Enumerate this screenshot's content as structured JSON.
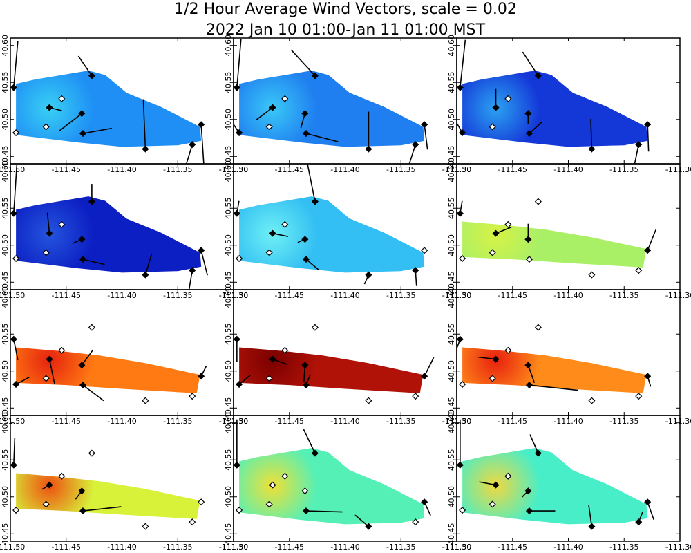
{
  "title": {
    "line1": "1/2 Hour Average Wind Vectors, scale =  0.02",
    "line2": "2022 Jan 10 01:00-Jan 11 01:00 MST"
  },
  "chart_data": {
    "type": "heatmap",
    "title": "1/2 Hour Average Wind Vectors, scale =  0.02",
    "subtitle": "2022 Jan 10 01:00-Jan 11 01:00 MST",
    "xlabel": "",
    "ylabel": "",
    "xlim": [
      -111.5,
      -111.3
    ],
    "ylim": [
      40.44,
      40.61
    ],
    "grid": false,
    "x_ticks": [
      -111.5,
      -111.45,
      -111.4,
      -111.35,
      -111.3
    ],
    "x_tick_labels": [
      "-111.50",
      "-111.45",
      "-111.40",
      "-111.35",
      "-111.30"
    ],
    "y_ticks": [
      40.45,
      40.5,
      40.55,
      40.6
    ],
    "y_tick_labels": [
      "40.45",
      "40.50",
      "40.55",
      "40.60"
    ],
    "stations": [
      {
        "id": "A",
        "lon": -111.497,
        "lat": 40.543
      },
      {
        "id": "B",
        "lon": -111.495,
        "lat": 40.482
      },
      {
        "id": "C",
        "lon": -111.465,
        "lat": 40.516
      },
      {
        "id": "D",
        "lon": -111.468,
        "lat": 40.49
      },
      {
        "id": "E",
        "lon": -111.454,
        "lat": 40.528
      },
      {
        "id": "F",
        "lon": -111.436,
        "lat": 40.508
      },
      {
        "id": "G",
        "lon": -111.435,
        "lat": 40.481
      },
      {
        "id": "H",
        "lon": -111.427,
        "lat": 40.559
      },
      {
        "id": "I",
        "lon": -111.379,
        "lat": 40.46
      },
      {
        "id": "J",
        "lon": -111.337,
        "lat": 40.466
      },
      {
        "id": "K",
        "lon": -111.329,
        "lat": 40.493
      }
    ],
    "panels": [
      {
        "index": 1,
        "field_color": "#1f8ff5",
        "core_color": "#38d0f4",
        "vectors": [
          [
            0.4,
            4.5
          ],
          [
            0,
            0
          ],
          [
            1.2,
            -0.3
          ],
          [
            0,
            0
          ],
          [
            0,
            0
          ],
          [
            -2.2,
            -1.7
          ],
          [
            2.8,
            0.5
          ],
          [
            -1.3,
            1.9
          ],
          [
            -0.2,
            4.8
          ],
          [
            -0.7,
            -2.3
          ],
          [
            0.3,
            -4.6
          ]
        ]
      },
      {
        "index": 2,
        "field_color": "#1f7ef0",
        "core_color": "#3ac8f7",
        "vectors": [
          [
            0.4,
            4.7
          ],
          [
            -1.4,
            2.1
          ],
          [
            -1.6,
            -1.2
          ],
          [
            0,
            0
          ],
          [
            0,
            0
          ],
          [
            -0.4,
            -1.4
          ],
          [
            3.1,
            -0.8
          ],
          [
            -2.3,
            2.5
          ],
          [
            0,
            3.6
          ],
          [
            -0.7,
            -2.2
          ],
          [
            0.3,
            -2.4
          ]
        ]
      },
      {
        "index": 3,
        "field_color": "#1437d8",
        "core_color": "#2ba2f1",
        "vectors": [
          [
            0.5,
            4.6
          ],
          [
            -1.1,
            1.9
          ],
          [
            0,
            1.8
          ],
          [
            0,
            0
          ],
          [
            0,
            0
          ],
          [
            0,
            -1.0
          ],
          [
            1.2,
            1.1
          ],
          [
            -1.5,
            2.3
          ],
          [
            -0.1,
            2.9
          ],
          [
            -0.5,
            -2.4
          ],
          [
            0.1,
            -2.6
          ]
        ]
      },
      {
        "index": 4,
        "field_color": "#0c1fc3",
        "core_color": "#2454dd",
        "vectors": [
          [
            0.3,
            4.7
          ],
          [
            0,
            0
          ],
          [
            -0.2,
            2.0
          ],
          [
            0,
            0
          ],
          [
            0,
            0
          ],
          [
            -0.9,
            -0.4
          ],
          [
            2.1,
            -0.5
          ],
          [
            0,
            1.7
          ],
          [
            0.6,
            2.0
          ],
          [
            -0.4,
            -2.4
          ],
          [
            0.6,
            -2.4
          ]
        ]
      },
      {
        "index": 5,
        "field_color": "#33bff3",
        "core_color": "#6ff0f4",
        "vectors": [
          [
            0.2,
            1.2
          ],
          [
            0,
            0
          ],
          [
            1.5,
            -0.3
          ],
          [
            0,
            0
          ],
          [
            0,
            0
          ],
          [
            -0.7,
            -0.3
          ],
          [
            1.2,
            -1.0
          ],
          [
            -0.9,
            4.5
          ],
          [
            -0.4,
            -0.9
          ],
          [
            0.1,
            -1.5
          ],
          [
            0,
            0
          ]
        ]
      },
      {
        "index": 6,
        "field_color": "#a9f067",
        "core_color": "#d7f245",
        "vectors": [
          [
            0.2,
            1.2
          ],
          [
            0,
            0
          ],
          [
            1.5,
            0.6
          ],
          [
            0,
            0
          ],
          [
            0,
            0
          ],
          [
            0,
            1.5
          ],
          [
            0,
            0
          ],
          [
            0,
            0
          ],
          [
            0,
            0
          ],
          [
            0,
            0
          ],
          [
            0.8,
            2.0
          ]
        ]
      },
      {
        "index": 7,
        "field_color": "#ff7a12",
        "core_color": "#e6230f",
        "vectors": [
          [
            0.4,
            -2.0
          ],
          [
            1.3,
            0.7
          ],
          [
            0.5,
            -2.4
          ],
          [
            0,
            0
          ],
          [
            0,
            0
          ],
          [
            1.1,
            1.5
          ],
          [
            2.0,
            -1.5
          ],
          [
            0,
            0
          ],
          [
            0,
            0
          ],
          [
            0,
            0
          ],
          [
            0.5,
            1.0
          ]
        ]
      },
      {
        "index": 8,
        "field_color": "#b01208",
        "core_color": "#7a0000",
        "vectors": [
          [
            0,
            -2.2
          ],
          [
            1.1,
            0.9
          ],
          [
            1.4,
            -0.5
          ],
          [
            0,
            0
          ],
          [
            0,
            0
          ],
          [
            -0.1,
            -1.6
          ],
          [
            0.4,
            1.0
          ],
          [
            0,
            0
          ],
          [
            0,
            0
          ],
          [
            0,
            0
          ],
          [
            0.9,
            1.8
          ]
        ]
      },
      {
        "index": 9,
        "field_color": "#ff8c1a",
        "core_color": "#e8200f",
        "vectors": [
          [
            -1.2,
            -3.3
          ],
          [
            0,
            0
          ],
          [
            -1.7,
            0.2
          ],
          [
            0,
            0
          ],
          [
            0,
            0
          ],
          [
            0.6,
            -1.7
          ],
          [
            4.7,
            -0.5
          ],
          [
            0,
            0
          ],
          [
            0,
            0
          ],
          [
            0,
            0
          ],
          [
            0.3,
            -1.0
          ]
        ]
      },
      {
        "index": 10,
        "field_color": "#d8f23a",
        "core_color": "#ee5010",
        "vectors": [
          [
            0.1,
            2.6
          ],
          [
            0,
            0
          ],
          [
            -0.7,
            -0.4
          ],
          [
            0,
            0
          ],
          [
            0,
            0
          ],
          [
            -0.6,
            -0.8
          ],
          [
            3.7,
            0.4
          ],
          [
            0,
            0
          ],
          [
            0,
            0
          ],
          [
            0,
            0
          ],
          [
            0,
            0
          ]
        ]
      },
      {
        "index": 11,
        "field_color": "#55f0b6",
        "core_color": "#f0e035",
        "vectors": [
          [
            0,
            4.4
          ],
          [
            0,
            0
          ],
          [
            0,
            0
          ],
          [
            0,
            0
          ],
          [
            0,
            0
          ],
          [
            0,
            0
          ],
          [
            3.5,
            -0.1
          ],
          [
            -1.1,
            2.3
          ],
          [
            -1.3,
            1.1
          ],
          [
            0,
            0
          ],
          [
            0.6,
            -1.3
          ]
        ]
      },
      {
        "index": 12,
        "field_color": "#48eec8",
        "core_color": "#f0d840",
        "vectors": [
          [
            0,
            4.4
          ],
          [
            0,
            0
          ],
          [
            -1.6,
            0.3
          ],
          [
            0,
            0
          ],
          [
            0,
            0
          ],
          [
            -0.6,
            -0.6
          ],
          [
            2.5,
            0
          ],
          [
            -0.8,
            1.8
          ],
          [
            -0.3,
            2.1
          ],
          [
            0.4,
            1.0
          ],
          [
            0.6,
            -1.7
          ]
        ]
      }
    ]
  }
}
